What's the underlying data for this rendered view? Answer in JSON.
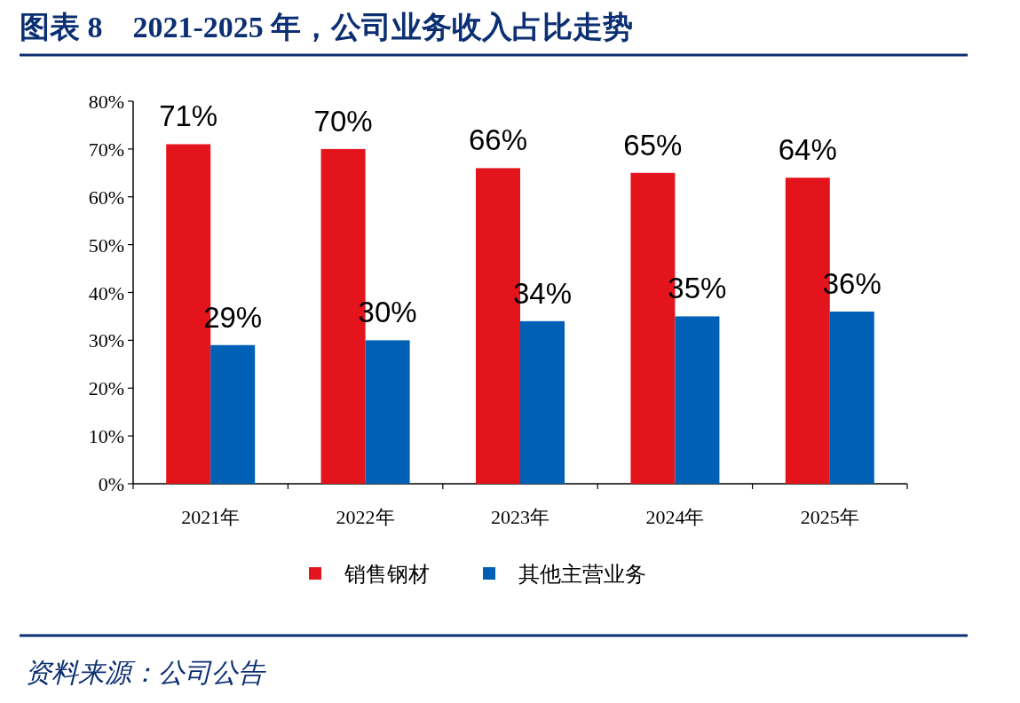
{
  "chart_data": {
    "type": "bar",
    "title": "图表 8　2021-2025 年，公司业务收入占比走势",
    "categories": [
      "2021年",
      "2022年",
      "2023年",
      "2024年",
      "2025年"
    ],
    "series": [
      {
        "name": "销售钢材",
        "color": "#e3141c",
        "values": [
          71,
          70,
          66,
          65,
          64
        ],
        "value_labels": [
          "71%",
          "70%",
          "66%",
          "65%",
          "64%"
        ]
      },
      {
        "name": "其他主营业务",
        "color": "#0060b6",
        "values": [
          29,
          30,
          34,
          35,
          36
        ],
        "value_labels": [
          "29%",
          "30%",
          "34%",
          "35%",
          "36%"
        ]
      }
    ],
    "ylim": [
      0,
      80
    ],
    "yticks": [
      {
        "value": 0,
        "label": "0%"
      },
      {
        "value": 10,
        "label": "10%"
      },
      {
        "value": 20,
        "label": "20%"
      },
      {
        "value": 30,
        "label": "30%"
      },
      {
        "value": 40,
        "label": "40%"
      },
      {
        "value": 50,
        "label": "50%"
      },
      {
        "value": 60,
        "label": "60%"
      },
      {
        "value": 70,
        "label": "70%"
      },
      {
        "value": 80,
        "label": "80%"
      }
    ],
    "grid": false,
    "legend": "bottom",
    "annotations": [
      "资料来源：公司公告"
    ]
  }
}
